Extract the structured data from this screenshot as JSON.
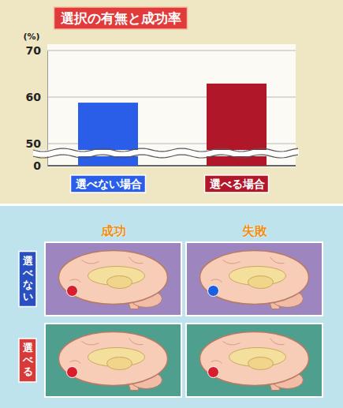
{
  "chart_data": {
    "type": "bar",
    "title": "選択の有無と成功率",
    "y_label": "(%)",
    "categories": [
      "選べない場合",
      "選べる場合"
    ],
    "values": [
      58.8,
      62.9
    ],
    "colors": [
      "#2a5ee8",
      "#b0182a"
    ],
    "ylim": [
      0,
      70
    ],
    "yticks": [
      0,
      50,
      60,
      70
    ],
    "grid": true
  },
  "diagram": {
    "columns": [
      "成功",
      "失敗"
    ],
    "rows": [
      {
        "label": "選べない",
        "dots": [
          "#d81e2c",
          "#1e5fe0"
        ]
      },
      {
        "label": "選べる",
        "dots": [
          "#d81e2c",
          "#d81e2c"
        ]
      }
    ]
  }
}
